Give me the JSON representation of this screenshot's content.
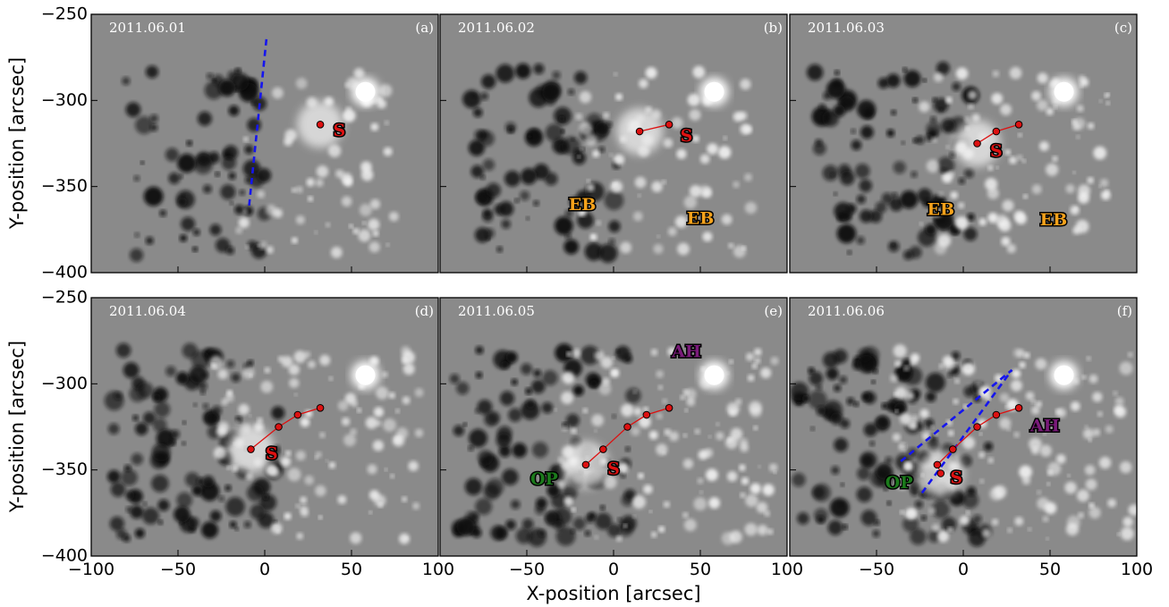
{
  "xlabel": "X-position [arcsec]",
  "ylabel": "Y-position [arcsec]",
  "xticks": [
    "−100",
    "−50",
    "0",
    "50",
    "100"
  ],
  "yticks": [
    "−250",
    "−300",
    "−350",
    "−400"
  ],
  "xlim": [
    -100,
    100
  ],
  "ylim": [
    -400,
    -250
  ],
  "colors": {
    "sunspot_track": "#dd1111",
    "cut_line": "#1515ee",
    "EB": "#f5a21b",
    "AH": "#7a1a7a",
    "OP": "#1b7a1b",
    "S": "#dd1111"
  },
  "panels": [
    {
      "date": "2011.06.01",
      "label": "(a)",
      "track": [
        [
          32,
          -314
        ]
      ],
      "features": [
        {
          "text": "S",
          "x": 43,
          "y": -318,
          "type": "S"
        }
      ],
      "cut": [
        [
          -9,
          -361
        ],
        [
          1,
          -264
        ]
      ]
    },
    {
      "date": "2011.06.02",
      "label": "(b)",
      "track": [
        [
          32,
          -314
        ],
        [
          15,
          -318
        ]
      ],
      "features": [
        {
          "text": "S",
          "x": 42,
          "y": -321,
          "type": "S"
        },
        {
          "text": "EB",
          "x": -18,
          "y": -361,
          "type": "EB"
        },
        {
          "text": "EB",
          "x": 50,
          "y": -369,
          "type": "EB"
        }
      ],
      "cut": []
    },
    {
      "date": "2011.06.03",
      "label": "(c)",
      "track": [
        [
          32,
          -314
        ],
        [
          19,
          -318
        ],
        [
          8,
          -325
        ]
      ],
      "features": [
        {
          "text": "S",
          "x": 19,
          "y": -330,
          "type": "S"
        },
        {
          "text": "EB",
          "x": -13,
          "y": -364,
          "type": "EB"
        },
        {
          "text": "EB",
          "x": 52,
          "y": -370,
          "type": "EB"
        }
      ],
      "cut": []
    },
    {
      "date": "2011.06.04",
      "label": "(d)",
      "track": [
        [
          32,
          -314
        ],
        [
          19,
          -318
        ],
        [
          8,
          -325
        ],
        [
          -8,
          -338
        ]
      ],
      "features": [
        {
          "text": "S",
          "x": 4,
          "y": -341,
          "type": "S"
        }
      ],
      "cut": []
    },
    {
      "date": "2011.06.05",
      "label": "(e)",
      "track": [
        [
          32,
          -314
        ],
        [
          19,
          -318
        ],
        [
          8,
          -325
        ],
        [
          -6,
          -338
        ],
        [
          -16,
          -347
        ]
      ],
      "features": [
        {
          "text": "S",
          "x": 0,
          "y": -350,
          "type": "S"
        },
        {
          "text": "OP",
          "x": -40,
          "y": -356,
          "type": "OP"
        },
        {
          "text": "AH",
          "x": 42,
          "y": -282,
          "type": "AH"
        }
      ],
      "cut": []
    },
    {
      "date": "2011.06.06",
      "label": "(f)",
      "track": [
        [
          32,
          -314
        ],
        [
          19,
          -318
        ],
        [
          8,
          -325
        ],
        [
          -6,
          -338
        ],
        [
          -15,
          -347
        ],
        [
          -13,
          -352
        ]
      ],
      "features": [
        {
          "text": "S",
          "x": -4,
          "y": -355,
          "type": "S"
        },
        {
          "text": "OP",
          "x": -37,
          "y": -358,
          "type": "OP"
        },
        {
          "text": "AH",
          "x": 47,
          "y": -325,
          "type": "AH"
        }
      ],
      "cut": [
        [
          -36,
          -345
        ],
        [
          28,
          -292
        ],
        [
          -25,
          -365
        ]
      ]
    }
  ]
}
